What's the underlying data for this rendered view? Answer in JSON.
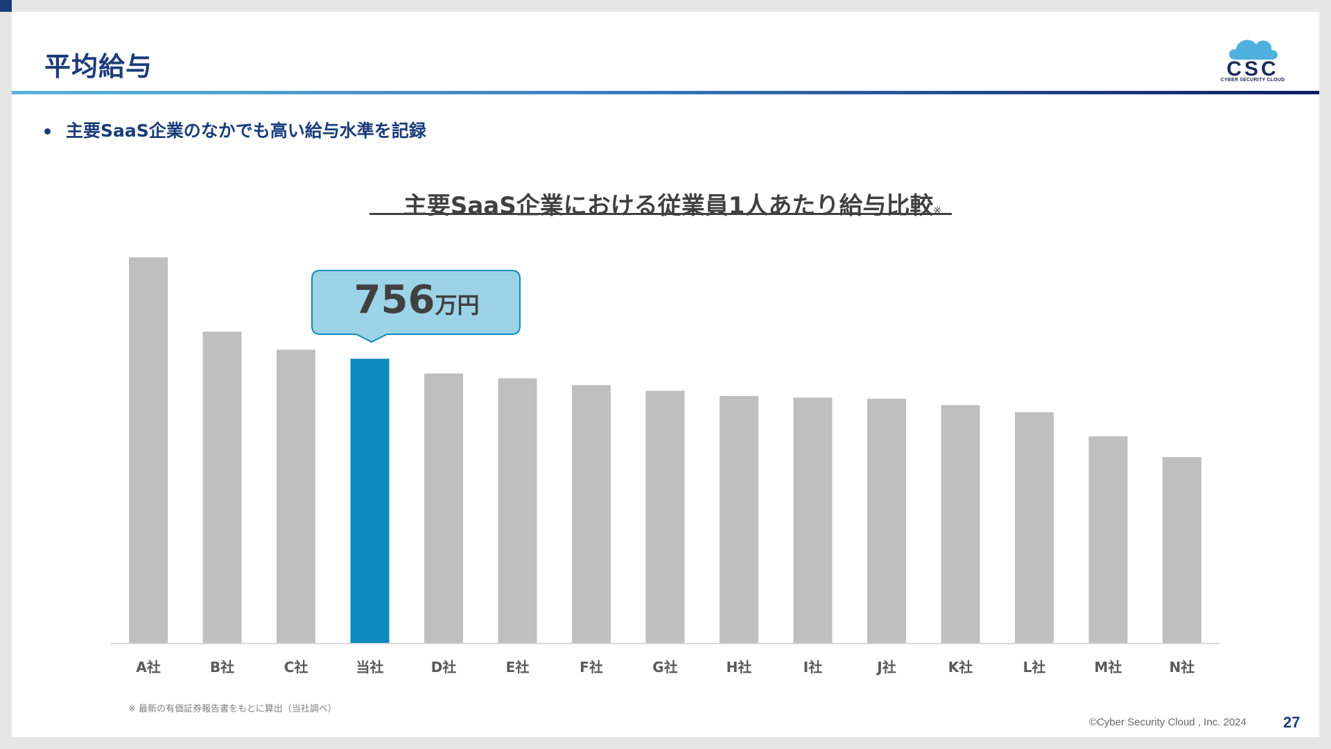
{
  "page": {
    "title": "平均給与",
    "bullet": "主要SaaS企業のなかでも高い給与水準を記録",
    "logo_text": "CSC",
    "logo_caption": "CYBER SECURITY CLOUD",
    "footnote": "※ 最新の有価証券報告書をもとに算出（当社調べ）",
    "copyright": "©Cyber Security Cloud , Inc. 2024",
    "page_number": "27"
  },
  "colors": {
    "title": "#1b3c7a",
    "bar_default": "#bfbfbf",
    "bar_highlight": "#0b8bbd",
    "callout_fill": "#9dd3e6",
    "callout_stroke": "#0b8bbd",
    "text_dark": "#404040"
  },
  "callout": {
    "number": "756",
    "unit": "万円"
  },
  "chart_data": {
    "type": "bar",
    "title": "主要SaaS企業における従業員1人あたり給与比較",
    "title_note": "※",
    "categories": [
      "A社",
      "B社",
      "C社",
      "当社",
      "D社",
      "E社",
      "F社",
      "G社",
      "H社",
      "I社",
      "J社",
      "K社",
      "L社",
      "M社",
      "N社"
    ],
    "values": [
      1025,
      828,
      780,
      756,
      717,
      704,
      686,
      671,
      657,
      653,
      650,
      633,
      614,
      550,
      495
    ],
    "unit": "万円",
    "highlight": "当社",
    "ylim": [
      0,
      1040
    ],
    "grid": false,
    "legend": "none"
  }
}
